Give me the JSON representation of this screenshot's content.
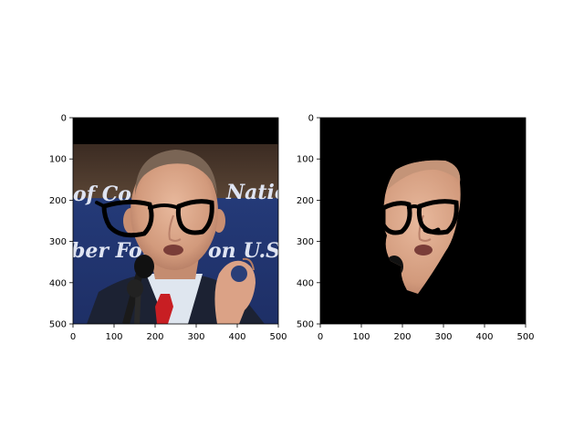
{
  "figure": {
    "panels": [
      {
        "name": "original-photo",
        "content": "photo of a man speaking at microphones wearing drawn-on black glasses, blue background with text",
        "background_text_lines": [
          "of Co",
          "Natio",
          "ber Fou",
          "on  U.S."
        ]
      },
      {
        "name": "segmented-face",
        "content": "face region cut out on black background, with drawn-on glasses"
      }
    ],
    "axis": {
      "x_ticks": [
        "0",
        "100",
        "200",
        "300",
        "400",
        "500"
      ],
      "y_ticks": [
        "0",
        "100",
        "200",
        "300",
        "400",
        "500"
      ],
      "x_range": [
        0,
        500
      ],
      "y_range": [
        0,
        500
      ],
      "y_inverted": true
    },
    "colors": {
      "backdrop_blue": "#2a3f78",
      "backdrop_text": "#dfe4f2",
      "skin": "#d9a58a",
      "suit": "#1c2233",
      "tie": "#c81e23",
      "shirt": "#dfe6ef",
      "mask_bg": "#000000"
    }
  }
}
